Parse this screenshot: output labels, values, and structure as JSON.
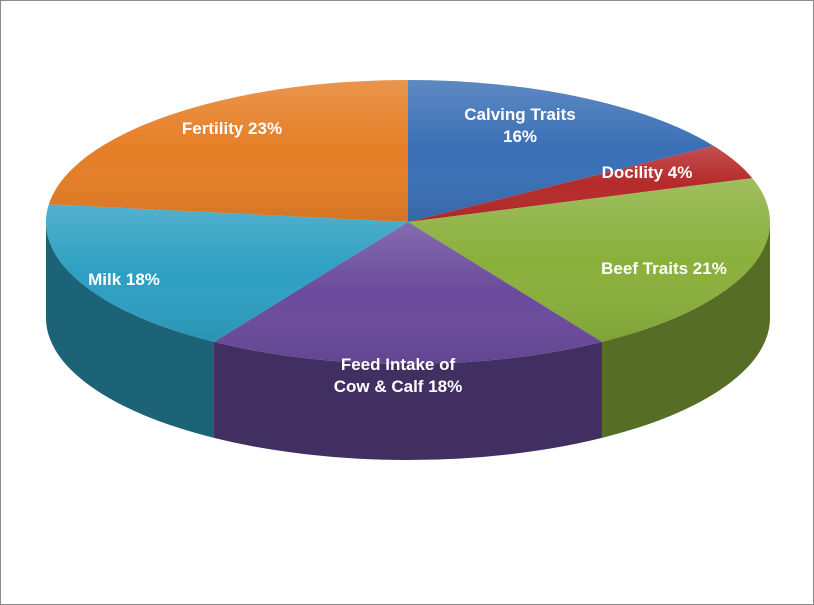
{
  "chart_data": {
    "type": "pie",
    "style": "3d",
    "slices": [
      {
        "label_lines": [
          "Calving Traits",
          "16%"
        ],
        "name": "Calving Traits",
        "value": 16,
        "color": "#3a6fb5"
      },
      {
        "label_lines": [
          "Docility 4%"
        ],
        "name": "Docility",
        "value": 4,
        "color": "#b52a2a"
      },
      {
        "label_lines": [
          "Beef Traits 21%"
        ],
        "name": "Beef Traits",
        "value": 21,
        "color": "#8ab03c"
      },
      {
        "label_lines": [
          "Feed Intake of",
          "Cow & Calf 18%"
        ],
        "name": "Feed Intake of Cow & Calf",
        "value": 18,
        "color": "#6a4b9c"
      },
      {
        "label_lines": [
          "Milk 18%"
        ],
        "name": "Milk",
        "value": 18,
        "color": "#2e9fc2"
      },
      {
        "label_lines": [
          "Fertility 23%"
        ],
        "name": "Fertility",
        "value": 23,
        "color": "#e57e26"
      }
    ]
  }
}
